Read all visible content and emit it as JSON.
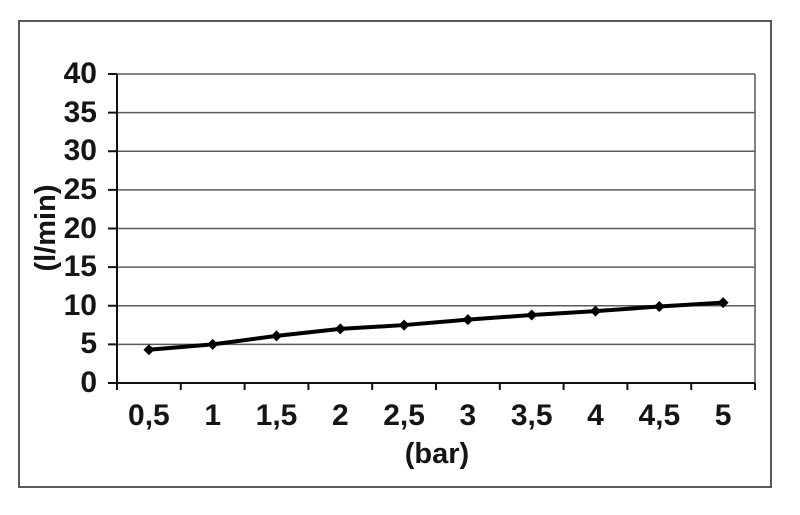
{
  "window": {
    "background_color": "#ffffff",
    "frame_border_color": "#595959"
  },
  "chart_data": {
    "type": "line",
    "title": "",
    "xlabel": "(bar)",
    "ylabel": "(l/min)",
    "categories": [
      "0,5",
      "1",
      "1,5",
      "2",
      "2,5",
      "3",
      "3,5",
      "4",
      "4,5",
      "5"
    ],
    "values": [
      4.3,
      5.0,
      6.1,
      7.0,
      7.5,
      8.2,
      8.8,
      9.3,
      9.9,
      10.4
    ],
    "ylim": [
      0,
      40
    ],
    "ytick_step": 5,
    "ytick_labels": [
      "0",
      "5",
      "10",
      "15",
      "20",
      "25",
      "30",
      "35",
      "40"
    ],
    "grid": true,
    "legend": "none",
    "marker": "diamond",
    "line_color": "#000000",
    "marker_color": "#000000",
    "grid_color": "#5a5a5a",
    "axis_color": "#111111",
    "text_color": "#151515"
  }
}
